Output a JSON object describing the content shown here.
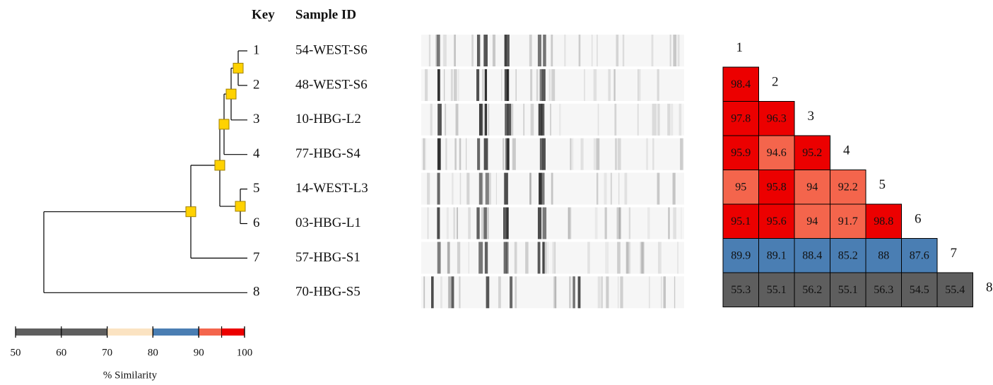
{
  "header": {
    "key": "Key",
    "sample_id": "Sample ID"
  },
  "samples": [
    {
      "key": "1",
      "id": "54-WEST-S6"
    },
    {
      "key": "2",
      "id": "48-WEST-S6"
    },
    {
      "key": "3",
      "id": "10-HBG-L2"
    },
    {
      "key": "4",
      "id": "77-HBG-S4"
    },
    {
      "key": "5",
      "id": "14-WEST-L3"
    },
    {
      "key": "6",
      "id": "03-HBG-L1"
    },
    {
      "key": "7",
      "id": "57-HBG-S1"
    },
    {
      "key": "8",
      "id": "70-HBG-S5"
    }
  ],
  "matrix": {
    "labels": [
      "1",
      "2",
      "3",
      "4",
      "5",
      "6",
      "7",
      "8"
    ],
    "rows": [
      [],
      [
        98.4
      ],
      [
        97.8,
        96.3
      ],
      [
        95.9,
        94.6,
        95.2
      ],
      [
        95,
        95.8,
        94,
        92.2
      ],
      [
        95.1,
        95.6,
        94,
        91.7,
        98.8
      ],
      [
        89.9,
        89.1,
        88.4,
        85.2,
        88,
        87.6
      ],
      [
        55.3,
        55.1,
        56.2,
        55.1,
        56.3,
        54.5,
        55.4
      ]
    ]
  },
  "scale": {
    "label": "% Similarity",
    "ticks": [
      50,
      60,
      70,
      80,
      90,
      100
    ],
    "bands": [
      {
        "from": 50,
        "to": 70,
        "color": "#5e5e5e"
      },
      {
        "from": 70,
        "to": 80,
        "color": "#fbe3c2"
      },
      {
        "from": 80,
        "to": 90,
        "color": "#4a7eb3"
      },
      {
        "from": 90,
        "to": 95,
        "color": "#f4654c"
      },
      {
        "from": 95,
        "to": 100,
        "color": "#ec0000"
      }
    ]
  }
}
